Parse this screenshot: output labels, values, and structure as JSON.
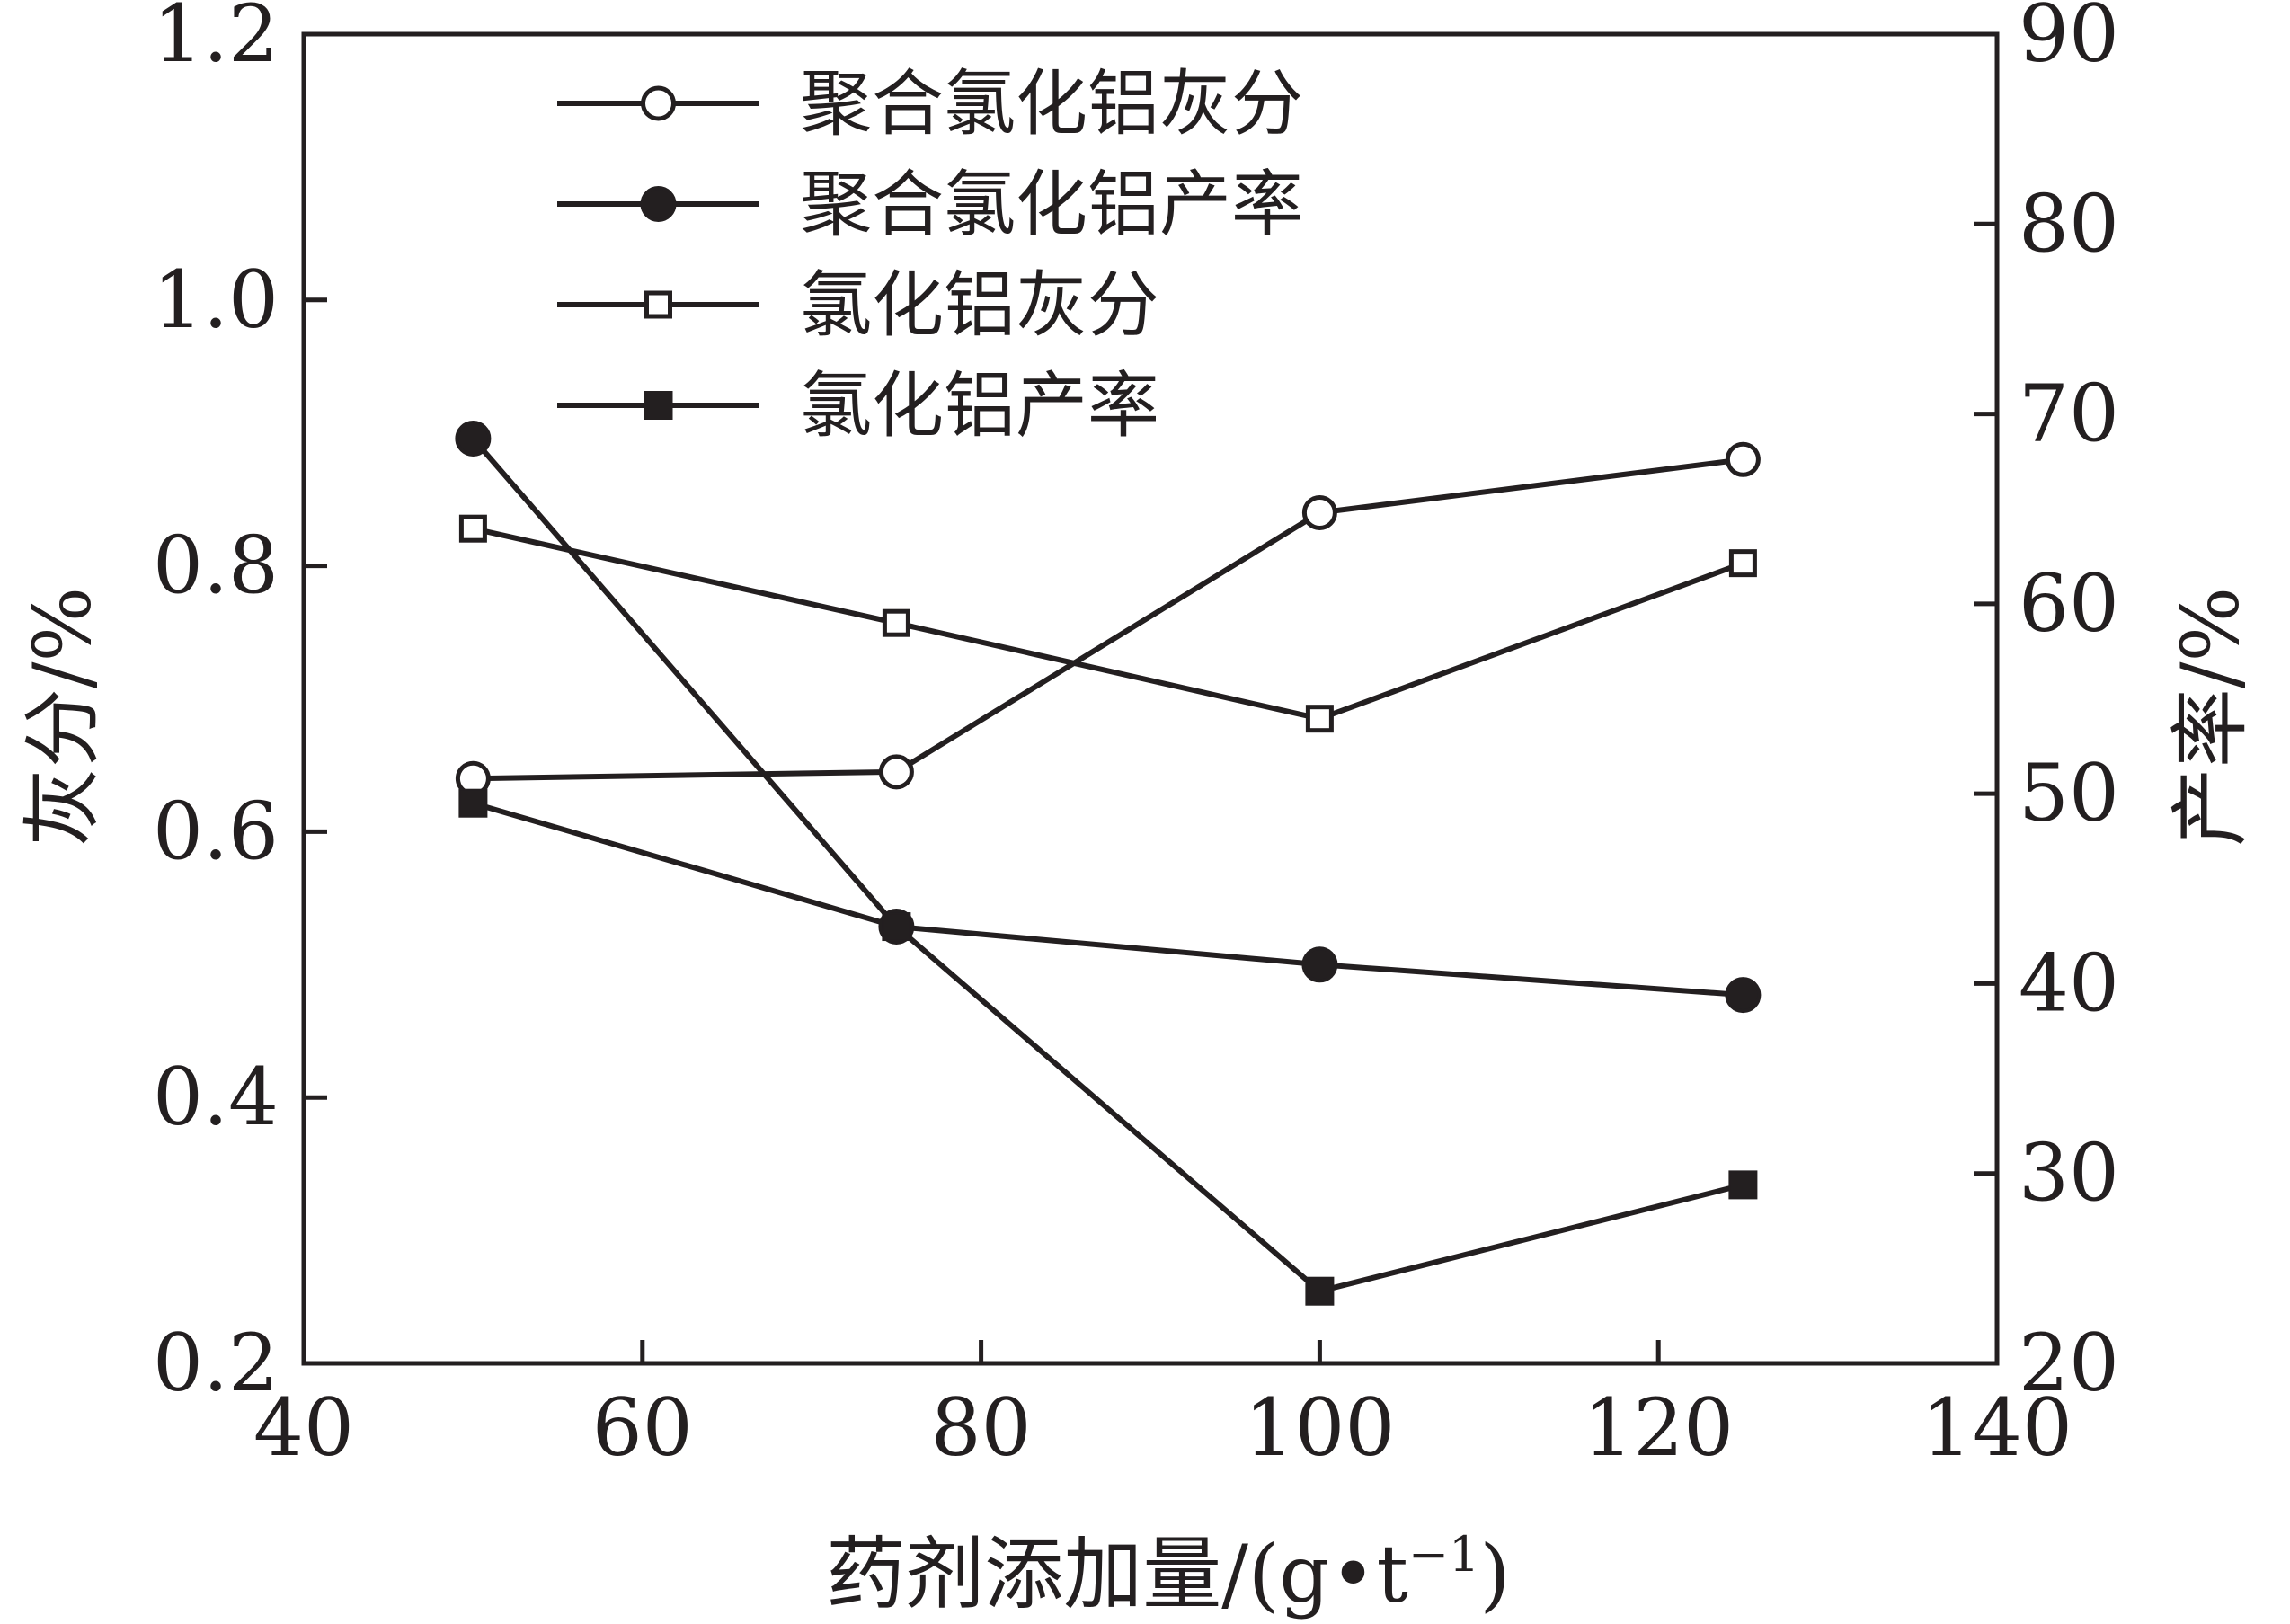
{
  "chart_data": {
    "type": "line",
    "x": [
      50,
      75,
      100,
      125
    ],
    "xlabel_main": "药剂添加量/(g•t",
    "xlabel_sup": "−1",
    "xlabel_tail": ")",
    "xlim": [
      40,
      140
    ],
    "xticks": [
      40,
      60,
      80,
      100,
      120,
      140
    ],
    "ylabel_left": "灰分/%",
    "ylim_left": [
      0.2,
      1.2
    ],
    "yticks_left": [
      "0.2",
      "0.4",
      "0.6",
      "0.8",
      "1.0",
      "1.2"
    ],
    "ylabel_right": "产率/%",
    "ylim_right": [
      20,
      90
    ],
    "yticks_right": [
      "20",
      "30",
      "40",
      "50",
      "60",
      "70",
      "80",
      "90"
    ],
    "legend_position": "top-left",
    "series": [
      {
        "name": "聚合氯化铝灰分",
        "axis": "left",
        "marker": "circle-open",
        "values": [
          0.64,
          0.645,
          0.84,
          0.88
        ]
      },
      {
        "name": "聚合氯化铝产率",
        "axis": "right",
        "marker": "circle-filled",
        "values": [
          68.7,
          43.0,
          41.0,
          39.4
        ]
      },
      {
        "name": "氯化铝灰分",
        "axis": "left",
        "marker": "square-open",
        "values": [
          0.828,
          0.757,
          0.685,
          0.802
        ]
      },
      {
        "name": "氯化铝产率",
        "axis": "right",
        "marker": "square-filled",
        "values": [
          49.5,
          43.0,
          23.8,
          29.4
        ]
      }
    ],
    "colors": {
      "line": "#231f20",
      "background": "#ffffff"
    }
  }
}
